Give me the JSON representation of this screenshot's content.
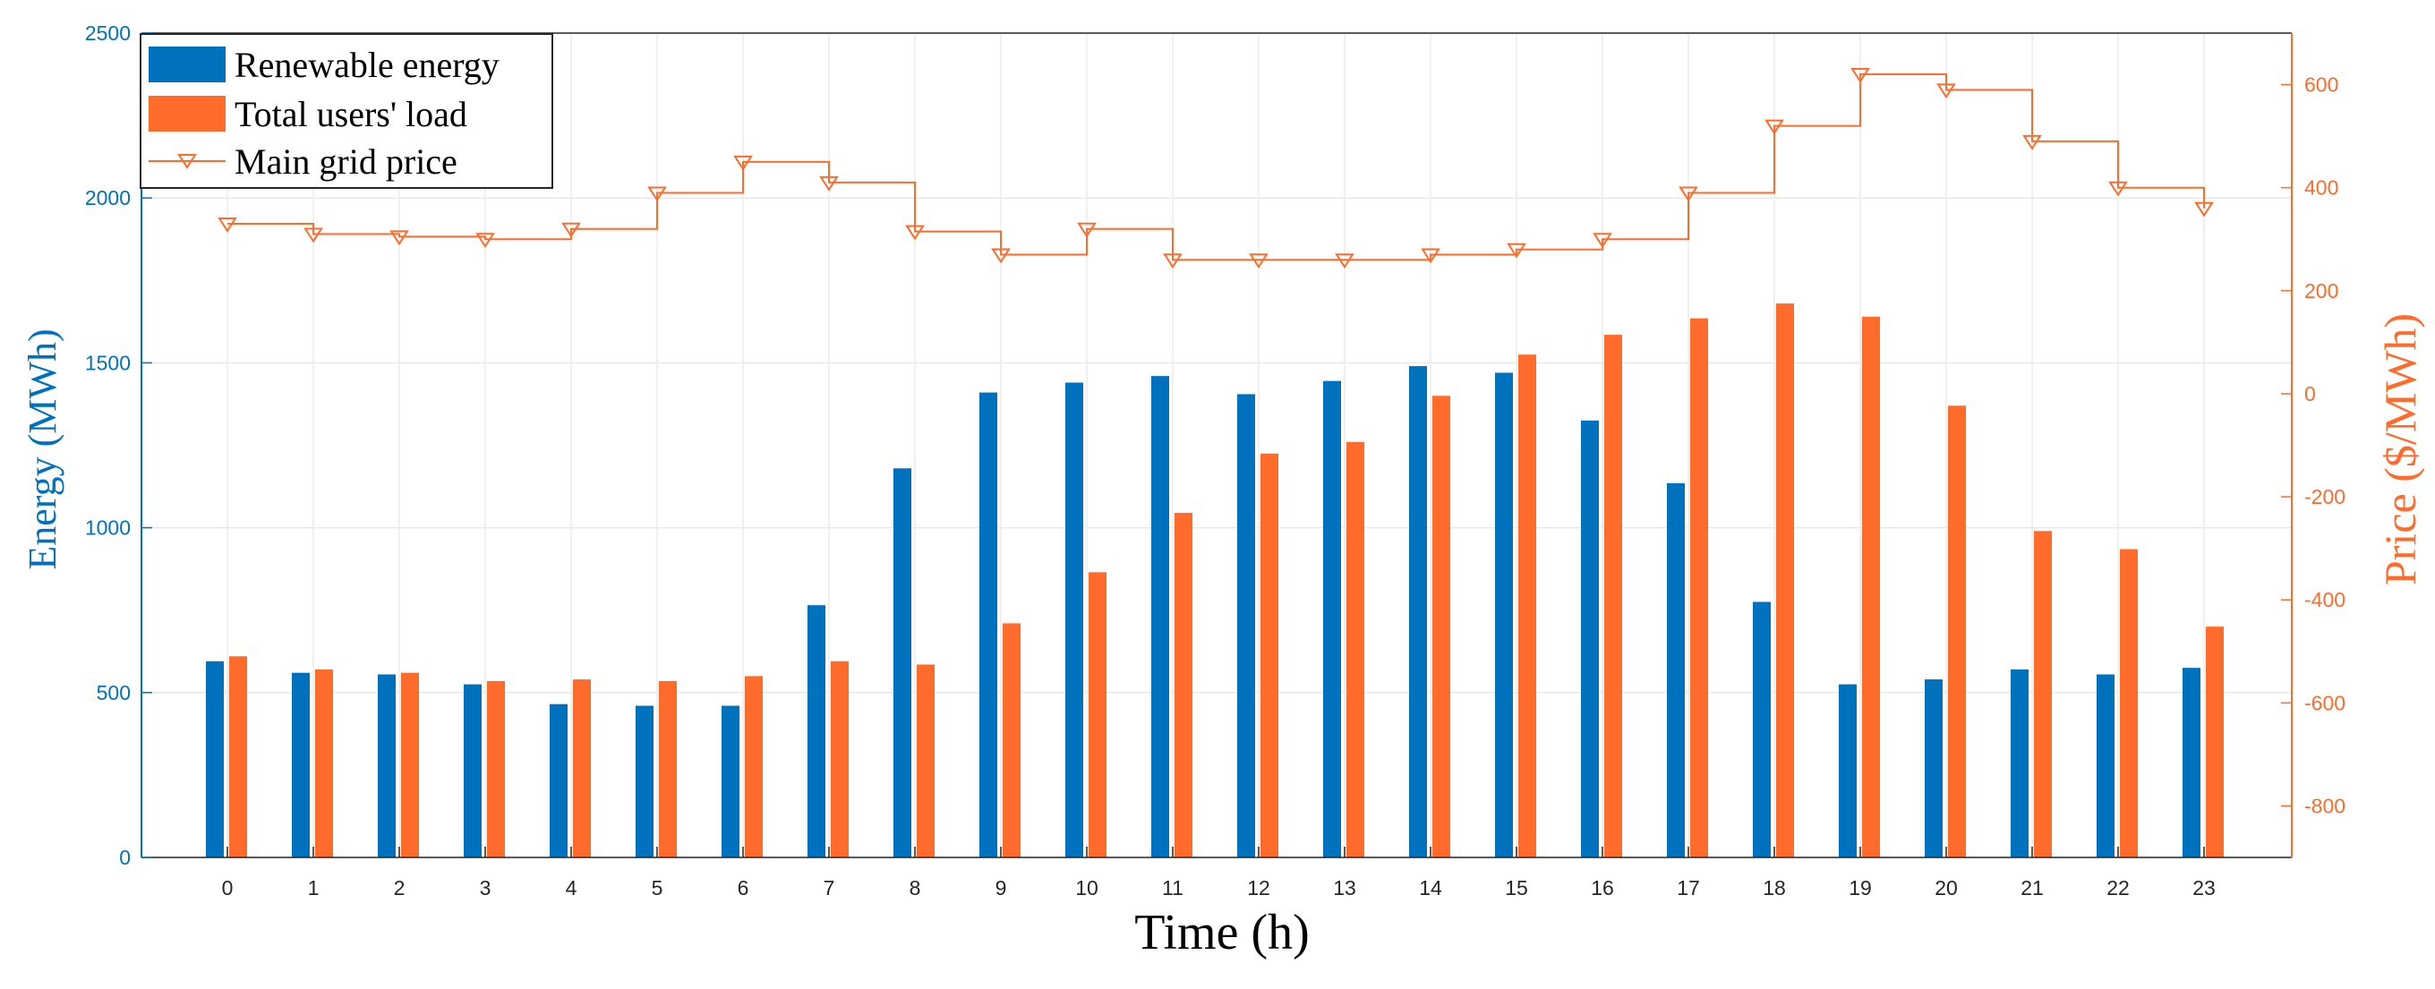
{
  "chart_data": {
    "type": "bar",
    "title": "",
    "xlabel": "Time (h)",
    "ylabel": "Energy (MWh)",
    "y2label": "Price ($/MWh)",
    "categories": [
      "0",
      "1",
      "2",
      "3",
      "4",
      "5",
      "6",
      "7",
      "8",
      "9",
      "10",
      "11",
      "12",
      "13",
      "14",
      "15",
      "16",
      "17",
      "18",
      "19",
      "20",
      "21",
      "22",
      "23"
    ],
    "ylim": [
      0,
      2500
    ],
    "yticks": [
      0,
      500,
      1000,
      1500,
      2000,
      2500
    ],
    "y2lim": [
      -900,
      700
    ],
    "y2ticks": [
      -800,
      -600,
      -400,
      -200,
      0,
      200,
      400,
      600
    ],
    "grid": true,
    "legend_position": "top-left",
    "colors": {
      "renewable": "#0072bd",
      "load": "#ff6b2b",
      "price": "#ff6b2b",
      "axis_left": "#0072bd",
      "axis_right": "#ff6b2b"
    },
    "series": [
      {
        "name": "Renewable energy",
        "type": "bar",
        "axis": "left",
        "values": [
          595,
          560,
          555,
          525,
          465,
          460,
          460,
          765,
          1180,
          1410,
          1440,
          1460,
          1405,
          1445,
          1490,
          1470,
          1325,
          1135,
          775,
          525,
          540,
          570,
          555,
          575
        ]
      },
      {
        "name": "Total users' load",
        "type": "bar",
        "axis": "left",
        "values": [
          610,
          570,
          560,
          535,
          540,
          535,
          550,
          595,
          585,
          710,
          865,
          1045,
          1225,
          1260,
          1400,
          1525,
          1585,
          1635,
          1680,
          1640,
          1370,
          990,
          935,
          700
        ]
      },
      {
        "name": "Main grid price",
        "type": "line-stairs",
        "axis": "right",
        "values": [
          330,
          310,
          305,
          300,
          320,
          390,
          450,
          410,
          315,
          270,
          320,
          260,
          260,
          260,
          270,
          280,
          300,
          390,
          520,
          620,
          590,
          490,
          400,
          360
        ]
      }
    ]
  }
}
